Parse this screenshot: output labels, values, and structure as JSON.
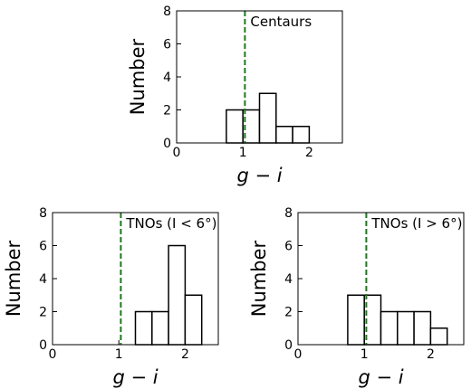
{
  "chart_data": [
    {
      "type": "bar",
      "annotation": "Centaurs",
      "xlabel": "g − i",
      "ylabel": "Number",
      "xlim": [
        0,
        2.5
      ],
      "ylim": [
        0,
        8
      ],
      "xticks": [
        "0",
        "1",
        "2"
      ],
      "yticks": [
        "0",
        "2",
        "4",
        "6",
        "8"
      ],
      "bin_width": 0.25,
      "bin_starts": [
        0.75,
        1.0,
        1.25,
        1.5,
        1.75
      ],
      "values": [
        2,
        2,
        3,
        1,
        1
      ],
      "reference_line": 1.03,
      "grid": false
    },
    {
      "type": "bar",
      "annotation": "TNOs (I < 6°)",
      "xlabel": "g − i",
      "ylabel": "Number",
      "xlim": [
        0,
        2.5
      ],
      "ylim": [
        0,
        8
      ],
      "xticks": [
        "0",
        "1",
        "2"
      ],
      "yticks": [
        "0",
        "2",
        "4",
        "6",
        "8"
      ],
      "bin_width": 0.25,
      "bin_starts": [
        1.25,
        1.5,
        1.75,
        2.0
      ],
      "values": [
        2,
        2,
        6,
        3
      ],
      "reference_line": 1.03,
      "grid": false
    },
    {
      "type": "bar",
      "annotation": "TNOs (I > 6°)",
      "xlabel": "g − i",
      "ylabel": "Number",
      "xlim": [
        0,
        2.5
      ],
      "ylim": [
        0,
        8
      ],
      "xticks": [
        "0",
        "1",
        "2"
      ],
      "yticks": [
        "0",
        "2",
        "4",
        "6",
        "8"
      ],
      "bin_width": 0.25,
      "bin_starts": [
        0.75,
        1.0,
        1.25,
        1.5,
        1.75,
        2.0
      ],
      "values": [
        3,
        3,
        2,
        2,
        2,
        1
      ],
      "reference_line": 1.03,
      "grid": false
    }
  ],
  "colors": {
    "reference_line": "#1a7a1a",
    "bar_edge": "#000000",
    "bar_fill": "#ffffff"
  }
}
